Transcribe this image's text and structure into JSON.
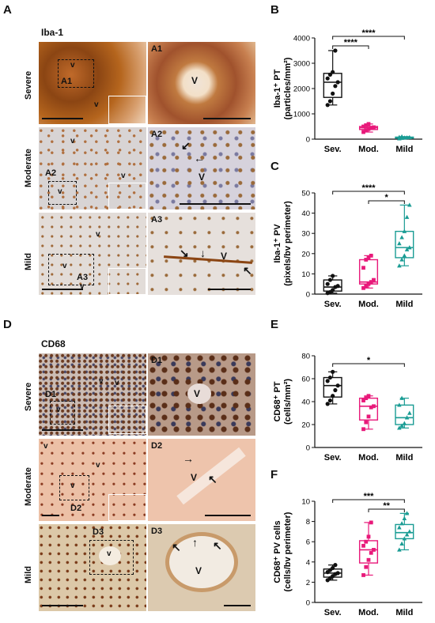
{
  "panels": {
    "A": {
      "letter": "A",
      "stain": "Iba-1",
      "rows": [
        "Severe",
        "Moderate",
        "Mild"
      ],
      "insets": [
        "A1",
        "A2",
        "A3"
      ],
      "vessel": "V"
    },
    "D": {
      "letter": "D",
      "stain": "CD68",
      "rows": [
        "Severe",
        "Moderate",
        "Mild"
      ],
      "insets": [
        "D1",
        "D2",
        "D3"
      ],
      "vessel": "V"
    }
  },
  "colors": {
    "severe": "#111111",
    "moderate": "#e8197a",
    "mild": "#1a9c94"
  },
  "chart_data": [
    {
      "panel": "B",
      "type": "box",
      "ylabel_line1": "Iba-1⁺ PT",
      "ylabel_line2": "(particles/mm²)",
      "ylim": [
        0,
        4000
      ],
      "yticks": [
        0,
        1000,
        2000,
        3000,
        4000
      ],
      "categories": [
        "Sev.",
        "Mod.",
        "Mild"
      ],
      "groups": [
        {
          "name": "Sev.",
          "color": "#111111",
          "marker": "circle",
          "min": 1350,
          "q1": 1650,
          "median": 2250,
          "q3": 2600,
          "max": 3500,
          "points": [
            1350,
            1500,
            1800,
            2100,
            2250,
            2400,
            2550,
            2650,
            3500
          ]
        },
        {
          "name": "Mod.",
          "color": "#e8197a",
          "marker": "square",
          "min": 280,
          "q1": 380,
          "median": 450,
          "q3": 500,
          "max": 600,
          "points": [
            280,
            350,
            400,
            450,
            470,
            500,
            550,
            600
          ]
        },
        {
          "name": "Mild",
          "color": "#1a9c94",
          "marker": "triangle",
          "min": 20,
          "q1": 40,
          "median": 60,
          "q3": 80,
          "max": 100,
          "points": [
            20,
            40,
            55,
            60,
            70,
            80,
            100
          ]
        }
      ],
      "significance": [
        {
          "from": 0,
          "to": 1,
          "label": "****",
          "level": 0
        },
        {
          "from": 0,
          "to": 2,
          "label": "****",
          "level": 1
        }
      ]
    },
    {
      "panel": "C",
      "type": "box",
      "ylabel_line1": "Iba-1⁺ PV",
      "ylabel_line2": "(pixels/bv perimeter)",
      "ylim": [
        0,
        50
      ],
      "yticks": [
        0,
        10,
        20,
        30,
        40,
        50
      ],
      "categories": [
        "Sev.",
        "Mod.",
        "Mild"
      ],
      "groups": [
        {
          "name": "Sev.",
          "color": "#111111",
          "marker": "circle",
          "min": 0.5,
          "q1": 1.5,
          "median": 3.5,
          "q3": 7,
          "max": 9,
          "points": [
            0.5,
            1,
            2,
            3.5,
            4,
            5,
            7,
            9
          ]
        },
        {
          "name": "Mod.",
          "color": "#e8197a",
          "marker": "square",
          "min": 3,
          "q1": 5,
          "median": 6,
          "q3": 17,
          "max": 19,
          "points": [
            3,
            4,
            5,
            6,
            7,
            13,
            17,
            18,
            19
          ]
        },
        {
          "name": "Mild",
          "color": "#1a9c94",
          "marker": "triangle",
          "min": 14,
          "q1": 18,
          "median": 23,
          "q3": 31,
          "max": 44,
          "points": [
            14,
            17,
            19,
            22,
            23,
            25,
            28,
            31,
            38,
            44
          ]
        }
      ],
      "significance": [
        {
          "from": 1,
          "to": 2,
          "label": "*",
          "level": 0
        },
        {
          "from": 0,
          "to": 2,
          "label": "****",
          "level": 1
        }
      ]
    },
    {
      "panel": "E",
      "type": "box",
      "ylabel_line1": "CD68⁺ PT",
      "ylabel_line2": "(cells/mm²)",
      "ylim": [
        0,
        80
      ],
      "yticks": [
        0,
        20,
        40,
        60,
        80
      ],
      "categories": [
        "Sev.",
        "Mod.",
        "Mild"
      ],
      "groups": [
        {
          "name": "Sev.",
          "color": "#111111",
          "marker": "circle",
          "min": 38,
          "q1": 44,
          "median": 54,
          "q3": 61,
          "max": 66,
          "points": [
            38,
            41,
            45,
            50,
            54,
            58,
            61,
            66
          ]
        },
        {
          "name": "Mod.",
          "color": "#e8197a",
          "marker": "square",
          "min": 16,
          "q1": 24,
          "median": 36,
          "q3": 43,
          "max": 45,
          "points": [
            16,
            22,
            27,
            35,
            36,
            41,
            43,
            45
          ]
        },
        {
          "name": "Mild",
          "color": "#1a9c94",
          "marker": "triangle",
          "min": 17,
          "q1": 20,
          "median": 26,
          "q3": 37,
          "max": 43,
          "points": [
            17,
            19,
            21,
            26,
            30,
            37,
            43
          ]
        }
      ],
      "significance": [
        {
          "from": 0,
          "to": 2,
          "label": "*",
          "level": 0
        }
      ]
    },
    {
      "panel": "F",
      "type": "box",
      "ylabel_line1": "CD68⁺ PV cells",
      "ylabel_line2": "(cells/bv perimeter)",
      "ylim": [
        0,
        10
      ],
      "yticks": [
        0,
        2,
        4,
        6,
        8,
        10
      ],
      "categories": [
        "Sev.",
        "Mod.",
        "Mild"
      ],
      "groups": [
        {
          "name": "Sev.",
          "color": "#111111",
          "marker": "circle",
          "min": 2.2,
          "q1": 2.5,
          "median": 2.9,
          "q3": 3.3,
          "max": 3.7,
          "points": [
            2.2,
            2.4,
            2.6,
            2.8,
            2.9,
            3.0,
            3.2,
            3.4,
            3.7
          ]
        },
        {
          "name": "Mod.",
          "color": "#e8197a",
          "marker": "square",
          "min": 2.7,
          "q1": 3.9,
          "median": 5.2,
          "q3": 6.1,
          "max": 7.9,
          "points": [
            2.7,
            3.5,
            4.2,
            4.9,
            5.2,
            5.6,
            6.0,
            6.5,
            7.9
          ]
        },
        {
          "name": "Mild",
          "color": "#1a9c94",
          "marker": "triangle",
          "min": 5.2,
          "q1": 6.3,
          "median": 6.9,
          "q3": 7.7,
          "max": 8.8,
          "points": [
            5.2,
            5.8,
            6.3,
            6.7,
            7.0,
            7.4,
            7.8,
            8.3,
            8.8
          ]
        }
      ],
      "significance": [
        {
          "from": 1,
          "to": 2,
          "label": "**",
          "level": 0
        },
        {
          "from": 0,
          "to": 2,
          "label": "***",
          "level": 1
        }
      ]
    }
  ]
}
